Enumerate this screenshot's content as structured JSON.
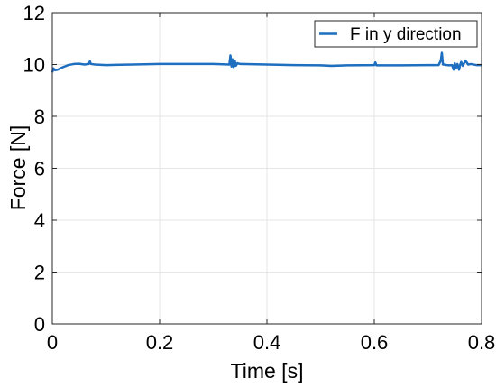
{
  "chart_data": {
    "type": "line",
    "title": "",
    "xlabel": "Time [s]",
    "ylabel": "Force [N]",
    "xlim": [
      0,
      0.8
    ],
    "ylim": [
      0,
      12
    ],
    "xticks": [
      "0",
      "0.2",
      "0.4",
      "0.6",
      "0.8"
    ],
    "yticks": [
      "0",
      "2",
      "4",
      "6",
      "8",
      "10",
      "12"
    ],
    "grid": true,
    "legend_position": "top-right",
    "series": [
      {
        "name": "F in y direction",
        "color": "#1f6fc0",
        "x": [
          0,
          0.002,
          0.005,
          0.01,
          0.015,
          0.02,
          0.03,
          0.04,
          0.05,
          0.06,
          0.068,
          0.07,
          0.072,
          0.08,
          0.1,
          0.15,
          0.2,
          0.25,
          0.3,
          0.33,
          0.332,
          0.334,
          0.336,
          0.338,
          0.34,
          0.342,
          0.345,
          0.35,
          0.4,
          0.45,
          0.5,
          0.52,
          0.55,
          0.6,
          0.602,
          0.604,
          0.65,
          0.7,
          0.72,
          0.724,
          0.726,
          0.728,
          0.73,
          0.735,
          0.74,
          0.745,
          0.748,
          0.75,
          0.752,
          0.755,
          0.758,
          0.76,
          0.762,
          0.765,
          0.77,
          0.775,
          0.78,
          0.79,
          0.8
        ],
        "y": [
          9.7,
          9.85,
          9.78,
          9.8,
          9.85,
          9.9,
          9.98,
          10.02,
          10.03,
          10.0,
          10.02,
          10.12,
          10.02,
          10.0,
          9.98,
          10.0,
          10.02,
          10.02,
          10.02,
          10.0,
          10.35,
          9.92,
          10.2,
          9.9,
          10.15,
          9.95,
          10.05,
          10.02,
          10.0,
          9.98,
          9.97,
          9.95,
          9.97,
          9.98,
          10.08,
          9.97,
          9.97,
          9.98,
          9.98,
          10.15,
          10.45,
          10.0,
          10.0,
          9.98,
          9.97,
          9.98,
          9.8,
          10.05,
          9.85,
          10.02,
          9.8,
          9.98,
          10.1,
          9.95,
          10.15,
          10.0,
          10.02,
          9.98,
          9.98
        ]
      }
    ]
  }
}
